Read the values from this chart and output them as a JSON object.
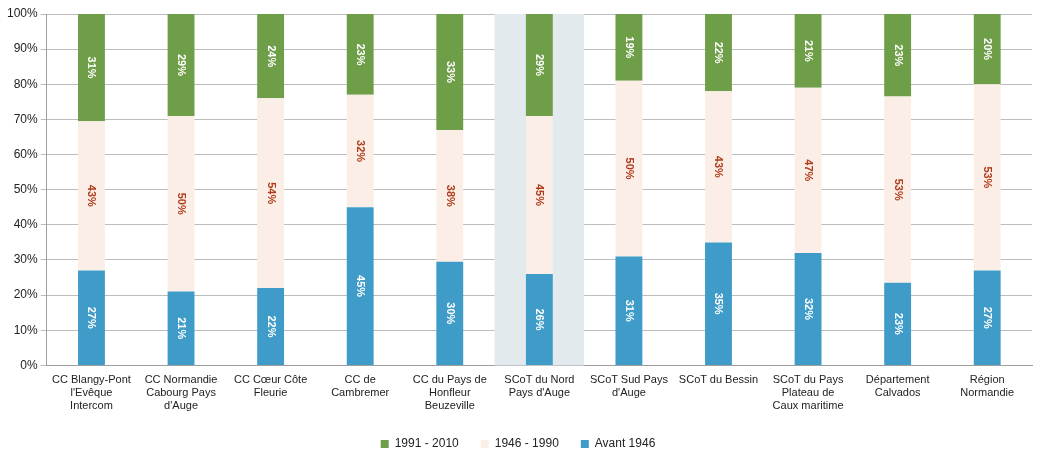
{
  "chart_data": {
    "type": "bar",
    "stacked": true,
    "categories": [
      "CC Blangy-Pont l'Evêque Intercom",
      "CC Normandie Cabourg Pays d'Auge",
      "CC Cœur Côte Fleurie",
      "CC de Cambremer",
      "CC du Pays de Honfleur Beuzeville",
      "SCoT du Nord Pays d'Auge",
      "SCoT Sud Pays d'Auge",
      "SCoT du Bessin",
      "SCoT du Pays Plateau de Caux maritime",
      "Département Calvados",
      "Région Normandie"
    ],
    "series": [
      {
        "name": "Avant 1946",
        "color": "#3f9cc8",
        "values": [
          27,
          21,
          22,
          45,
          29.5,
          26,
          31,
          35,
          32,
          23.5,
          27
        ],
        "value_labels": [
          "27%",
          "21%",
          "22%",
          "45%",
          "30%",
          "26%",
          "31%",
          "35%",
          "32%",
          "23%",
          "27%"
        ]
      },
      {
        "name": "1946 - 1990",
        "color": "#fbeee6",
        "values": [
          42.5,
          50,
          54,
          32,
          37.5,
          45,
          50,
          43,
          47,
          53,
          53
        ],
        "value_labels": [
          "43%",
          "50%",
          "54%",
          "32%",
          "38%",
          "45%",
          "50%",
          "43%",
          "47%",
          "53%",
          "53%"
        ]
      },
      {
        "name": "1991 - 2010",
        "color": "#6f9e48",
        "values": [
          30.5,
          29,
          24,
          23,
          33,
          29,
          19,
          22,
          21,
          23.5,
          20
        ],
        "value_labels": [
          "31%",
          "29%",
          "24%",
          "23%",
          "33%",
          "29%",
          "19%",
          "22%",
          "21%",
          "23%",
          "20%"
        ]
      }
    ],
    "ylim": [
      0,
      100
    ],
    "yticks": [
      {
        "value": 0,
        "label": "0%"
      },
      {
        "value": 10,
        "label": "10%"
      },
      {
        "value": 20,
        "label": "20%"
      },
      {
        "value": 30,
        "label": "30%"
      },
      {
        "value": 40,
        "label": "40%"
      },
      {
        "value": 50,
        "label": "50%"
      },
      {
        "value": 60,
        "label": "60%"
      },
      {
        "value": 70,
        "label": "70%"
      },
      {
        "value": 80,
        "label": "80%"
      },
      {
        "value": 90,
        "label": "90%"
      },
      {
        "value": 100,
        "label": "100%"
      }
    ],
    "bands": [
      {
        "axis": "x",
        "from": "SCoT du Nord Pays d'Auge",
        "to": "SCoT du Nord Pays d'Auge",
        "color": "#e2eaed"
      }
    ],
    "grid": "y",
    "legend": "bottom"
  }
}
